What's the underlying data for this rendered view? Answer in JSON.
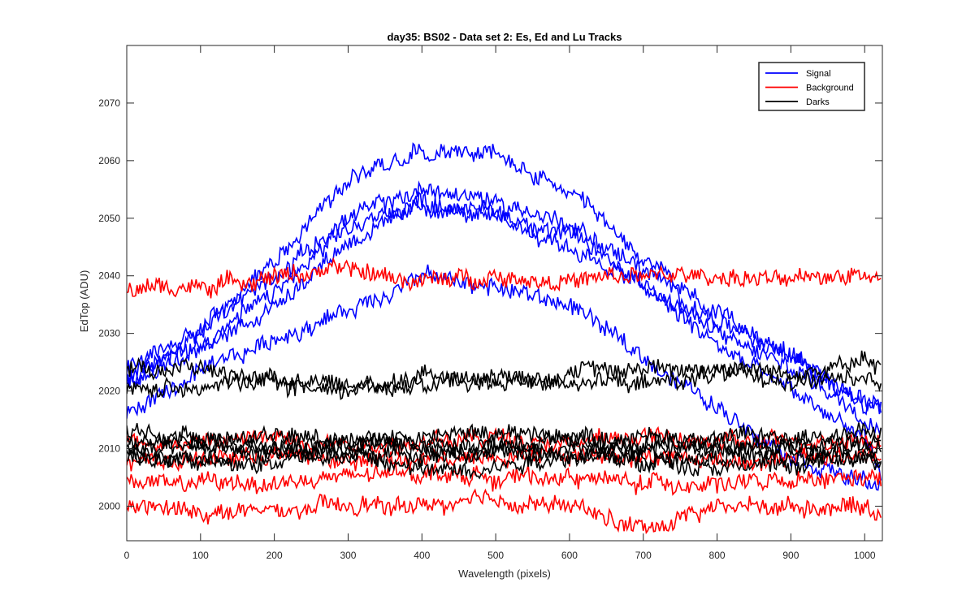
{
  "chart_data": {
    "type": "line",
    "title": "day35: BS02 - Data set 2: Es, Ed and Lu Tracks",
    "xlabel": "Wavelength (pixels)",
    "ylabel": "EdTop (ADU)",
    "xlim": [
      0,
      1024
    ],
    "ylim": [
      1994,
      2080
    ],
    "xticks": [
      0,
      100,
      200,
      300,
      400,
      500,
      600,
      700,
      800,
      900,
      1000
    ],
    "yticks": [
      2000,
      2010,
      2020,
      2030,
      2040,
      2050,
      2060,
      2070
    ],
    "grid": false,
    "legend": {
      "location": "top-right",
      "entries": [
        {
          "label": "Signal",
          "color": "#0000ff"
        },
        {
          "label": "Background",
          "color": "#ff0000"
        },
        {
          "label": "Darks",
          "color": "#000000"
        }
      ]
    },
    "series": [
      {
        "group": "Signal",
        "color": "#0000ff",
        "x": [
          0,
          100,
          200,
          300,
          400,
          500,
          600,
          700,
          800,
          900,
          1000,
          1023
        ],
        "y": [
          2021,
          2030,
          2043,
          2057,
          2062,
          2061,
          2054,
          2043,
          2033,
          2026,
          2018,
          2016
        ]
      },
      {
        "group": "Signal",
        "color": "#0000ff",
        "x": [
          0,
          100,
          200,
          300,
          400,
          500,
          600,
          700,
          800,
          900,
          1000,
          1023
        ],
        "y": [
          2024,
          2031,
          2040,
          2050,
          2055,
          2053,
          2049,
          2041,
          2032,
          2026,
          2019,
          2018
        ]
      },
      {
        "group": "Signal",
        "color": "#0000ff",
        "x": [
          0,
          100,
          200,
          300,
          400,
          500,
          600,
          700,
          800,
          900,
          1000,
          1023
        ],
        "y": [
          2023,
          2028,
          2037,
          2048,
          2053,
          2051,
          2047,
          2039,
          2030,
          2024,
          2016,
          2014
        ]
      },
      {
        "group": "Signal",
        "color": "#0000ff",
        "x": [
          0,
          100,
          200,
          300,
          400,
          500,
          600,
          700,
          800,
          900,
          1000,
          1023
        ],
        "y": [
          2022,
          2027,
          2035,
          2046,
          2052,
          2050,
          2045,
          2038,
          2028,
          2020,
          2012,
          2005
        ]
      },
      {
        "group": "Signal",
        "color": "#0000ff",
        "x": [
          0,
          100,
          200,
          300,
          400,
          500,
          600,
          700,
          800,
          900,
          1000,
          1023
        ],
        "y": [
          2016,
          2023,
          2029,
          2034,
          2040,
          2038,
          2035,
          2026,
          2017,
          2009,
          2004,
          2003
        ]
      },
      {
        "group": "Background",
        "color": "#ff0000",
        "x": [
          0,
          100,
          200,
          300,
          400,
          500,
          600,
          700,
          800,
          900,
          1000,
          1023
        ],
        "y": [
          2038,
          2038,
          2040,
          2041,
          2039,
          2040,
          2039,
          2040,
          2040,
          2039,
          2041,
          2039
        ]
      },
      {
        "group": "Background",
        "color": "#ff0000",
        "x": [
          0,
          100,
          200,
          300,
          400,
          500,
          600,
          700,
          800,
          900,
          1000,
          1023
        ],
        "y": [
          2011,
          2011,
          2012,
          2011,
          2011,
          2012,
          2011,
          2012,
          2011,
          2011,
          2012,
          2011
        ]
      },
      {
        "group": "Background",
        "color": "#ff0000",
        "x": [
          0,
          100,
          200,
          300,
          400,
          500,
          600,
          700,
          800,
          900,
          1000,
          1023
        ],
        "y": [
          2008,
          2008,
          2009,
          2008,
          2008,
          2009,
          2009,
          2009,
          2008,
          2008,
          2009,
          2009
        ]
      },
      {
        "group": "Background",
        "color": "#ff0000",
        "x": [
          0,
          100,
          200,
          300,
          400,
          500,
          600,
          700,
          800,
          900,
          1000,
          1023
        ],
        "y": [
          2004,
          2004,
          2004,
          2005,
          2006,
          2005,
          2005,
          2004,
          2004,
          2004,
          2005,
          2004
        ]
      },
      {
        "group": "Background",
        "color": "#ff0000",
        "x": [
          0,
          100,
          200,
          300,
          400,
          500,
          600,
          700,
          800,
          900,
          1000,
          1023
        ],
        "y": [
          2000,
          1999,
          1999,
          2000,
          2000,
          2001,
          2000,
          1996,
          2000,
          2000,
          2000,
          1999
        ]
      },
      {
        "group": "Darks",
        "color": "#000000",
        "x": [
          0,
          100,
          200,
          300,
          400,
          500,
          600,
          700,
          800,
          900,
          1000,
          1023
        ],
        "y": [
          2024,
          2024,
          2021,
          2020,
          2023,
          2022,
          2023,
          2024,
          2024,
          2023,
          2025,
          2024
        ]
      },
      {
        "group": "Darks",
        "color": "#000000",
        "x": [
          0,
          100,
          200,
          300,
          400,
          500,
          600,
          700,
          800,
          900,
          1000,
          1023
        ],
        "y": [
          2020,
          2021,
          2022,
          2021,
          2021,
          2022,
          2022,
          2021,
          2023,
          2022,
          2022,
          2021
        ]
      },
      {
        "group": "Darks",
        "color": "#000000",
        "x": [
          0,
          100,
          200,
          300,
          400,
          500,
          600,
          700,
          800,
          900,
          1000,
          1023
        ],
        "y": [
          2013,
          2012,
          2012,
          2012,
          2012,
          2013,
          2012,
          2012,
          2012,
          2012,
          2013,
          2012
        ]
      },
      {
        "group": "Darks",
        "color": "#000000",
        "x": [
          0,
          100,
          200,
          300,
          400,
          500,
          600,
          700,
          800,
          900,
          1000,
          1023
        ],
        "y": [
          2011,
          2011,
          2011,
          2011,
          2011,
          2011,
          2011,
          2010,
          2011,
          2010,
          2011,
          2011
        ]
      },
      {
        "group": "Darks",
        "color": "#000000",
        "x": [
          0,
          100,
          200,
          300,
          400,
          500,
          600,
          700,
          800,
          900,
          1000,
          1023
        ],
        "y": [
          2010,
          2010,
          2010,
          2010,
          2010,
          2010,
          2010,
          2010,
          2010,
          2010,
          2010,
          2010
        ]
      },
      {
        "group": "Darks",
        "color": "#000000",
        "x": [
          0,
          100,
          200,
          300,
          400,
          500,
          600,
          700,
          800,
          900,
          1000,
          1023
        ],
        "y": [
          2009,
          2009,
          2009,
          2009,
          2009,
          2009,
          2009,
          2008,
          2009,
          2008,
          2008,
          2008
        ]
      },
      {
        "group": "Darks",
        "color": "#000000",
        "x": [
          0,
          100,
          200,
          300,
          400,
          500,
          600,
          700,
          800,
          900,
          1000,
          1023
        ],
        "y": [
          2009,
          2007,
          2008,
          2009,
          2006,
          2007,
          2009,
          2008,
          2007,
          2007,
          2009,
          2008
        ]
      }
    ]
  }
}
